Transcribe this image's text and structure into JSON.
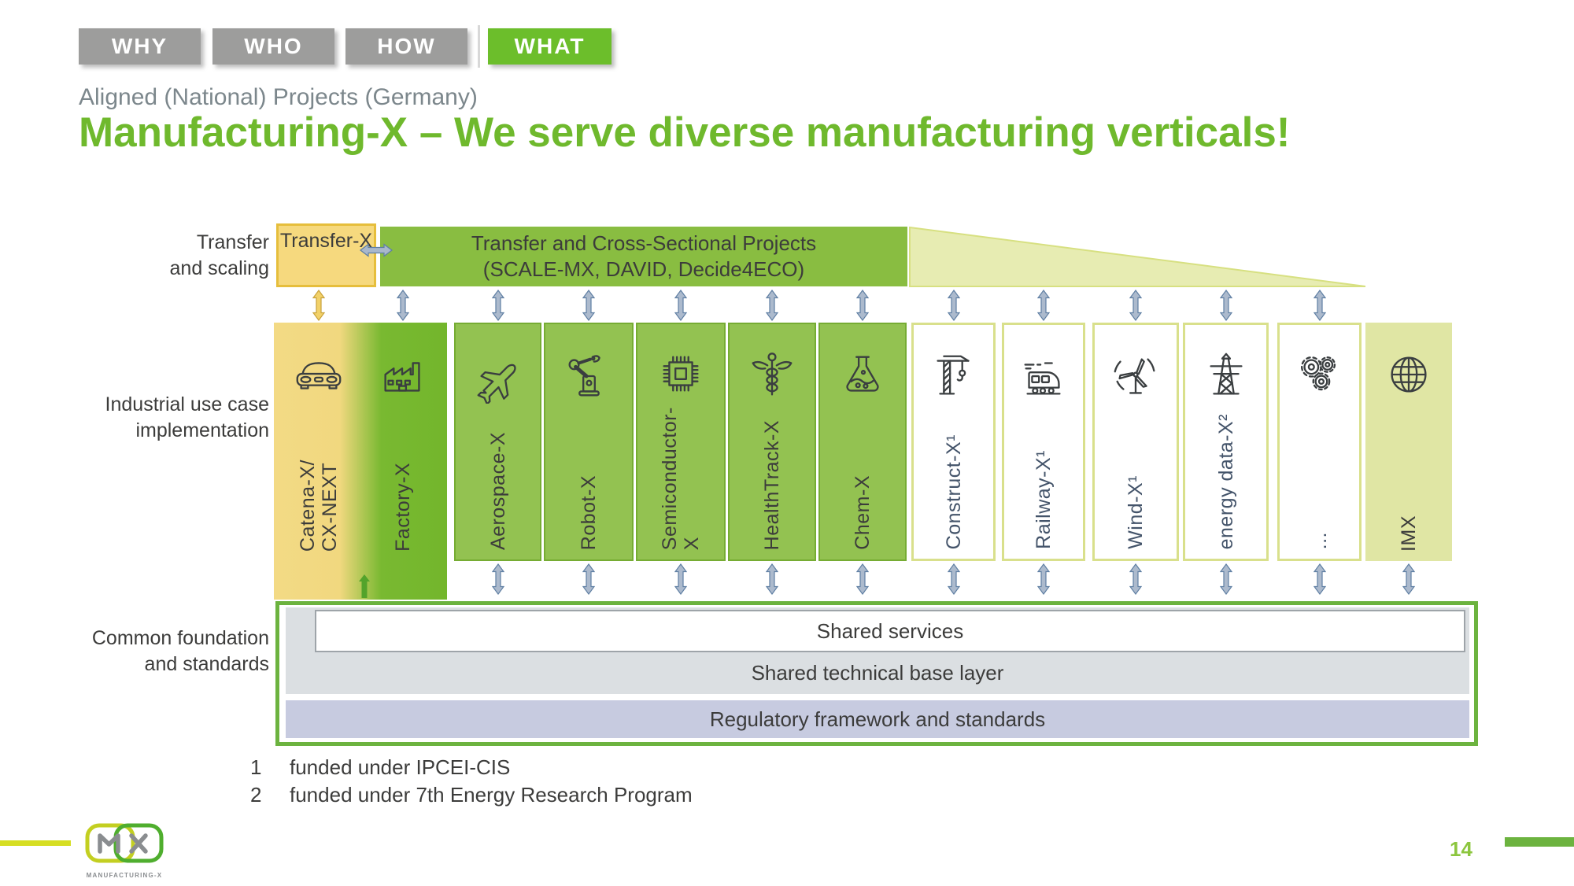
{
  "nav": {
    "tabs": [
      {
        "label": "WHY",
        "active": false
      },
      {
        "label": "WHO",
        "active": false
      },
      {
        "label": "HOW",
        "active": false
      },
      {
        "label": "WHAT",
        "active": true
      }
    ]
  },
  "header": {
    "subtitle": "Aligned (National) Projects (Germany)",
    "title": "Manufacturing-X – We serve diverse manufacturing verticals!"
  },
  "diagram": {
    "row_labels": {
      "transfer": "Transfer\nand scaling",
      "use_case": "Industrial use case\nimplementation",
      "foundation": "Common foundation\nand standards"
    },
    "transfer_row": {
      "transfer_x": "Transfer-X",
      "cross_sectional": "Transfer and Cross-Sectional Projects\n(SCALE-MX, DAVID, Decide4ECO)"
    },
    "verticals": [
      {
        "label": "Catena-X/\nCX-NEXT",
        "icon": "car-icon",
        "style": "gradient-yellow",
        "top_arrow": "yellow",
        "bottom_arrow": null
      },
      {
        "label": "Factory-X",
        "icon": "factory-icon",
        "style": "gradient-green",
        "top_arrow": "blue",
        "bottom_arrow": "green-small"
      },
      {
        "label": "Aerospace-X",
        "icon": "airplane-icon",
        "style": "green",
        "top_arrow": "blue",
        "bottom_arrow": "blue"
      },
      {
        "label": "Robot-X",
        "icon": "robot-arm-icon",
        "style": "green",
        "top_arrow": "blue",
        "bottom_arrow": "blue"
      },
      {
        "label": "Semiconductor-X",
        "icon": "microchip-icon",
        "style": "green",
        "top_arrow": "blue",
        "bottom_arrow": "blue"
      },
      {
        "label": "HealthTrack-X",
        "icon": "caduceus-icon",
        "style": "green",
        "top_arrow": "blue",
        "bottom_arrow": "blue"
      },
      {
        "label": "Chem-X",
        "icon": "flask-icon",
        "style": "green",
        "top_arrow": "blue",
        "bottom_arrow": "blue"
      },
      {
        "label": "Construct-X¹",
        "icon": "crane-icon",
        "style": "white",
        "top_arrow": "blue",
        "bottom_arrow": "blue"
      },
      {
        "label": "Railway-X¹",
        "icon": "train-icon",
        "style": "white",
        "top_arrow": "blue",
        "bottom_arrow": "blue"
      },
      {
        "label": "Wind-X¹",
        "icon": "wind-turbine-icon",
        "style": "white",
        "top_arrow": "blue",
        "bottom_arrow": "blue"
      },
      {
        "label": "energy data-X²",
        "icon": "power-pylon-icon",
        "style": "white",
        "top_arrow": "blue",
        "bottom_arrow": "blue"
      },
      {
        "label": "...",
        "icon": "gears-icon",
        "style": "white",
        "top_arrow": "blue",
        "bottom_arrow": "blue"
      },
      {
        "label": "IMX",
        "icon": "globe-icon",
        "style": "light",
        "top_arrow": null,
        "bottom_arrow": "blue"
      }
    ],
    "foundation_layers": [
      {
        "label": "Shared services",
        "style": "white"
      },
      {
        "label": "Shared technical base layer",
        "style": "gray"
      },
      {
        "label": "Regulatory framework and standards",
        "style": "lavender"
      }
    ]
  },
  "footnotes": [
    {
      "num": "1",
      "text": "funded under IPCEI-CIS"
    },
    {
      "num": "2",
      "text": "funded under 7th Energy Research Program"
    }
  ],
  "footer": {
    "page_number": "14",
    "logo_m": "M",
    "logo_x": "X",
    "logo_caption": "MANUFACTURING-X"
  },
  "colors": {
    "accent_green": "#6CBE2B",
    "title_green": "#6FB92D",
    "column_green": "#93C251",
    "transfer_green": "#89BD41",
    "catena_yellow": "#F3DA85",
    "imx_light": "#E0E6A4",
    "foundation_border": "#6CB33F",
    "gray_layer": "#DBDFE2",
    "lavender_layer": "#C7CBE0",
    "arrow_blue": "#ACBACD",
    "arrow_yellow": "#F2D169",
    "tab_gray": "#9D9D9C",
    "label_dark": "#3C3C3B",
    "label_slate": "#44546A"
  }
}
